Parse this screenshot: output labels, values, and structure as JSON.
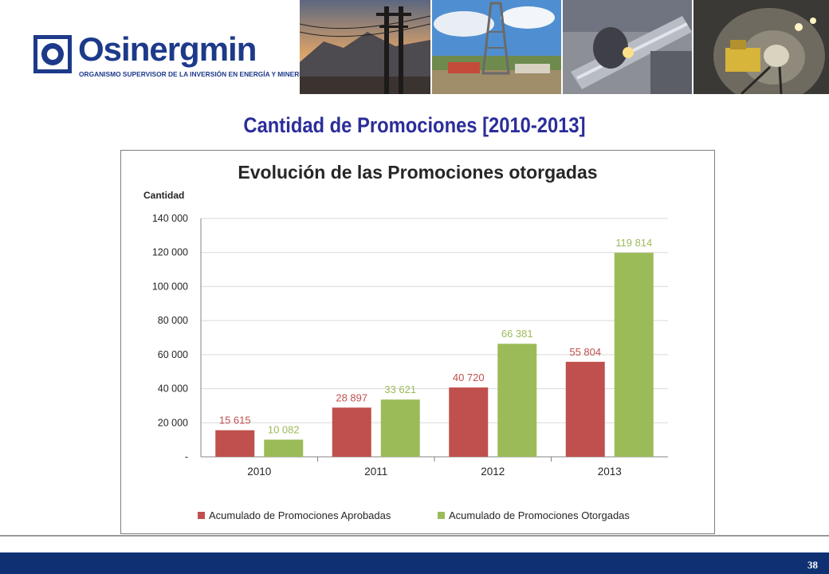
{
  "header": {
    "logo_name": "Osinergmin",
    "logo_subtitle": "ORGANISMO SUPERVISOR DE LA INVERSIÓN EN ENERGÍA Y MINERÍA",
    "photos": [
      "power-lines-photo",
      "oil-rig-photo",
      "pipeline-welding-photo",
      "mining-tunnel-photo"
    ]
  },
  "slide": {
    "title": "Cantidad de Promociones [2010-2013]",
    "page_number": "38"
  },
  "colors": {
    "brand_blue": "#1d3a8a",
    "title_blue": "#2b2d9a",
    "footer_blue": "#0f3174",
    "series_red": "#c0504d",
    "series_green": "#9bbb59"
  },
  "chart_data": {
    "type": "bar",
    "title": "Evolución de las Promociones otorgadas",
    "xlabel": "",
    "ylabel": "Cantidad",
    "categories": [
      "2010",
      "2011",
      "2012",
      "2013"
    ],
    "ylim": [
      0,
      140000
    ],
    "yticks": [
      0,
      20000,
      40000,
      60000,
      80000,
      100000,
      120000,
      140000
    ],
    "ytick_labels": [
      "-",
      "20 000",
      "40 000",
      "60 000",
      "80 000",
      "100 000",
      "120 000",
      "140 000"
    ],
    "grid": true,
    "legend_position": "bottom",
    "series": [
      {
        "name": "Acumulado de Promociones Aprobadas",
        "color": "#c0504d",
        "values": [
          15615,
          28897,
          40720,
          55804
        ],
        "labels": [
          "15 615",
          "28 897",
          "40 720",
          "55 804"
        ]
      },
      {
        "name": "Acumulado de Promociones Otorgadas",
        "color": "#9bbb59",
        "values": [
          10082,
          33621,
          66381,
          119814
        ],
        "labels": [
          "10 082",
          "33 621",
          "66 381",
          "119 814"
        ]
      }
    ]
  }
}
